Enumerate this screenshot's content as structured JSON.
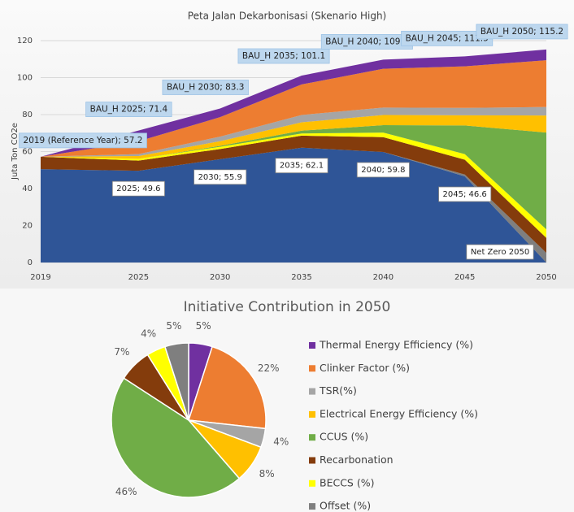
{
  "chart_data": [
    {
      "type": "area",
      "title": "Peta Jalan Dekarbonisasi (Skenario High)",
      "ylabel": "Juta Ton CO2e",
      "x": [
        2019,
        2025,
        2030,
        2035,
        2040,
        2045,
        2050
      ],
      "xlim": [
        2019,
        2050
      ],
      "xticks": [
        2019,
        2025,
        2030,
        2035,
        2040,
        2045,
        2050
      ],
      "ylim": [
        0,
        120
      ],
      "yticks": [
        0,
        20,
        40,
        60,
        80,
        100,
        120
      ],
      "grid": true,
      "series": [
        {
          "color": "#2f5597",
          "values": [
            50.5,
            49.6,
            55.9,
            62.1,
            59.8,
            46.6,
            0
          ],
          "value_labels": [
            null,
            "2025; 49.6",
            "2030; 55.9",
            "2035; 62.1",
            "2040; 59.8",
            "2045; 46.6",
            null
          ]
        },
        {
          "color": "#7f7f7f",
          "values": [
            0,
            0,
            0,
            0,
            0,
            1,
            5.2
          ]
        },
        {
          "color": "#843c0c",
          "values": [
            6.7,
            5.5,
            5.5,
            6.5,
            8,
            8,
            8.1
          ]
        },
        {
          "color": "#ffff00",
          "values": [
            0,
            1,
            1.2,
            1.2,
            2.5,
            3,
            4.6
          ]
        },
        {
          "color": "#70ad47",
          "values": [
            0,
            0,
            0.5,
            1.5,
            4,
            15.5,
            52.4
          ]
        },
        {
          "color": "#ffc000",
          "values": [
            0,
            1.5,
            2.5,
            4.5,
            5.5,
            5.5,
            9.2
          ]
        },
        {
          "color": "#a5a5a5",
          "values": [
            0,
            1,
            2.5,
            4,
            4,
            4,
            4.6
          ]
        },
        {
          "color": "#ed7d31",
          "values": [
            0,
            7,
            10.5,
            16.5,
            21,
            22.5,
            25.3
          ]
        },
        {
          "color": "#7030a0",
          "values": [
            0,
            5.8,
            4.7,
            4.8,
            4.9,
            5.4,
            5.8
          ]
        }
      ],
      "total_labels": [
        "2019 (Reference Year); 57.2",
        "BAU_H 2025; 71.4",
        "BAU_H 2030; 83.3",
        "BAU_H 2035; 101.1",
        "BAU_H 2040; 109.7",
        "BAU_H 2045; 111.5",
        "BAU_H 2050; 115.2"
      ],
      "note": "Net Zero 2050"
    },
    {
      "type": "pie",
      "title": "Initiative Contribution in 2050",
      "categories": [
        "Thermal Energy Efficiency (%)",
        "Clinker Factor (%)",
        "TSR(%)",
        "Electrical Energy Efficiency (%)",
        "CCUS (%)",
        "Recarbonation",
        "BECCS (%)",
        "Offset (%)"
      ],
      "values": [
        5,
        22,
        4,
        8,
        46,
        7,
        4,
        5
      ],
      "value_labels": [
        "5%",
        "22%",
        "4%",
        "8%",
        "46%",
        "7%",
        "4%",
        "5%"
      ],
      "colors": [
        "#7030a0",
        "#ed7d31",
        "#a5a5a5",
        "#ffc000",
        "#70ad47",
        "#843c0c",
        "#ffff00",
        "#7f7f7f"
      ]
    }
  ]
}
